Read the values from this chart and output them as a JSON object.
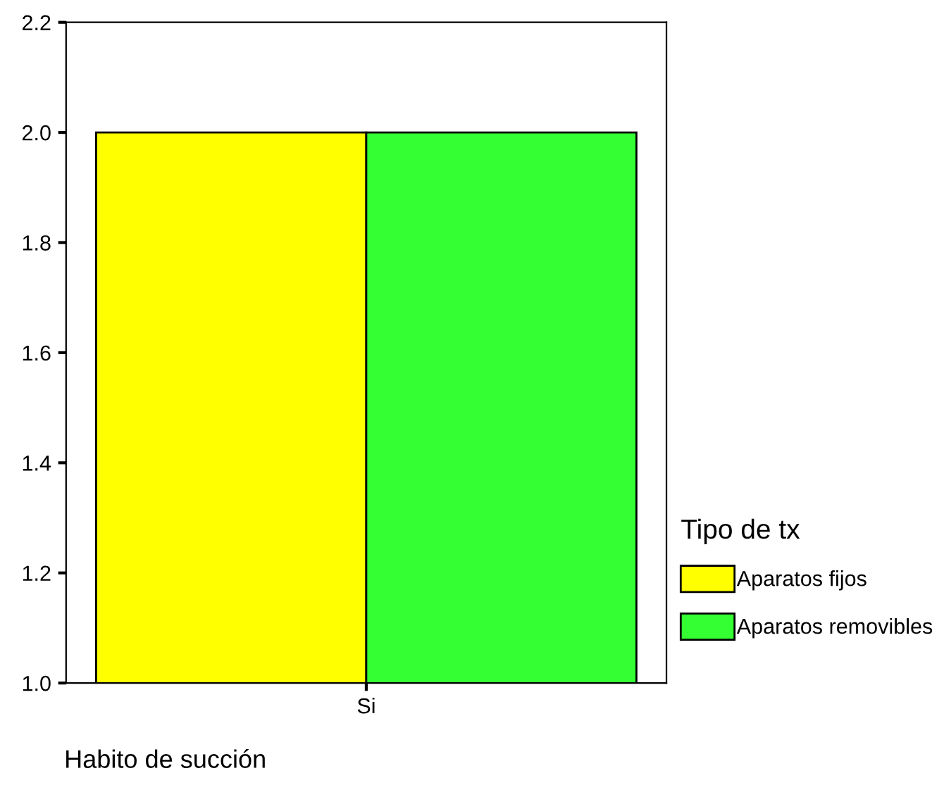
{
  "chart_data": {
    "type": "bar",
    "xlabel": "Habito de succión",
    "legend_title": "Tipo de tx",
    "categories": [
      "Si"
    ],
    "series": [
      {
        "name": "Aparatos fijos",
        "color": "#ffff00",
        "values": [
          2.0
        ]
      },
      {
        "name": "Aparatos removibles",
        "color": "#33ff33",
        "values": [
          2.0
        ]
      }
    ],
    "ylim": [
      1.0,
      2.2
    ],
    "yticks": [
      {
        "value": 1.0,
        "label": "1.0"
      },
      {
        "value": 1.2,
        "label": "1.2"
      },
      {
        "value": 1.4,
        "label": "1.4"
      },
      {
        "value": 1.6,
        "label": "1.6"
      },
      {
        "value": 1.8,
        "label": "1.8"
      },
      {
        "value": 2.0,
        "label": "2.0"
      },
      {
        "value": 2.2,
        "label": "2.2"
      }
    ],
    "grid": false,
    "legend": "right"
  }
}
